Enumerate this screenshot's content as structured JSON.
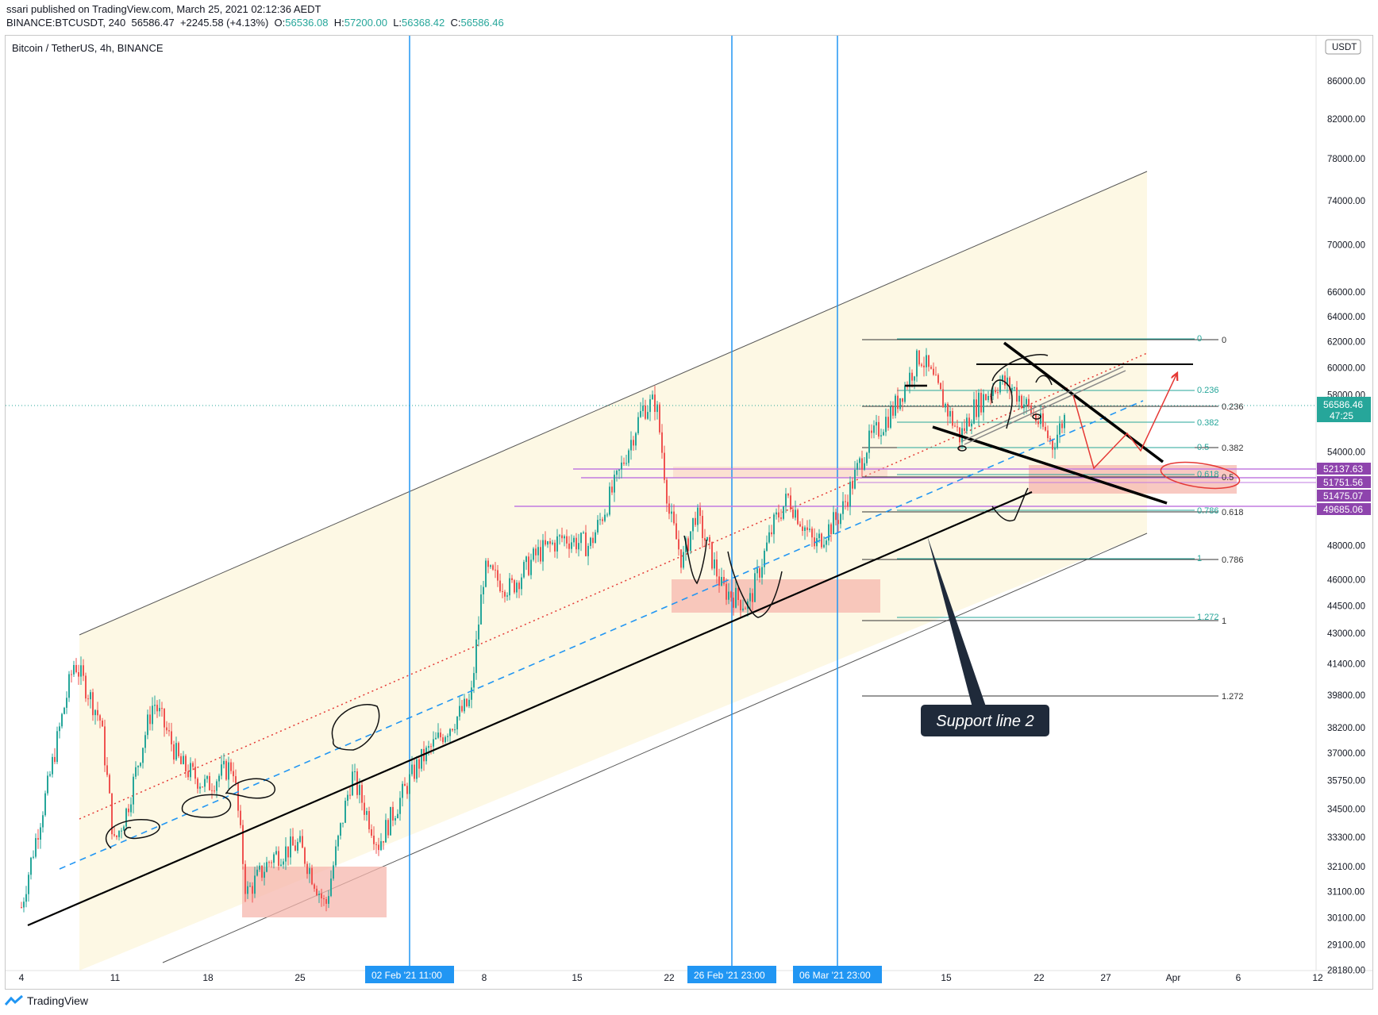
{
  "header": {
    "published": "ssari published on TradingView.com, March 25, 2021 02:12:36 AEDT",
    "symbol_line": "BINANCE:BTCUSDT, 240",
    "last": "56586.47",
    "change": "+2245.58 (+4.13%)",
    "o_label": "O:",
    "o": "56536.08",
    "h_label": "H:",
    "h": "57200.00",
    "l_label": "L:",
    "l": "56368.42",
    "c_label": "C:",
    "c": "56586.46"
  },
  "chart_title": "Bitcoin / TetherUS, 4h, BINANCE",
  "currency_badge": "USDT",
  "footer_brand": "TradingView",
  "annotation_label": "Support line 2",
  "colors": {
    "up": "#26a69a",
    "down": "#ef5350",
    "vline": "#2196f3",
    "purple": "#c27be0",
    "zone": "#f6b7ae",
    "channel_fill": "#fdf8e4"
  },
  "chart_data": {
    "type": "candlestick",
    "title": "Bitcoin / TetherUS, 4h, BINANCE",
    "y_scale": "log",
    "ylim": [
      27500,
      92000
    ],
    "y_ticks": [
      "86000.00",
      "82000.00",
      "78000.00",
      "74000.00",
      "70000.00",
      "66000.00",
      "64000.00",
      "62000.00",
      "60000.00",
      "58000.00",
      "54000.00",
      "48000.00",
      "46000.00",
      "44500.00",
      "43000.00",
      "41400.00",
      "39800.00",
      "38200.00",
      "37000.00",
      "35750.00",
      "34500.00",
      "33300.00",
      "32100.00",
      "31100.00",
      "30100.00",
      "29100.00",
      "28180.00"
    ],
    "x_ticks": [
      "4",
      "11",
      "18",
      "25",
      "8",
      "15",
      "22",
      "15",
      "22",
      "27",
      "Apr",
      "6",
      "12"
    ],
    "vline_labels": [
      "02 Feb '21   11:00",
      "26 Feb '21   23:00",
      "06 Mar '21   23:00"
    ],
    "current_price": "56586.46",
    "current_price_timer": "47:25",
    "price_level_tags": [
      "52137.63",
      "51751.56",
      "51475.07",
      "49685.06"
    ],
    "fib_retracement_1": {
      "levels": [
        "0",
        "0.236",
        "0.382",
        "0.5",
        "0.618",
        "0.786",
        "1",
        "1.272"
      ]
    },
    "fib_retracement_2": {
      "levels": [
        "0",
        "0.236",
        "0.382",
        "0.5",
        "0.618",
        "0.786",
        "1",
        "1.272"
      ]
    },
    "price_path": [
      {
        "date": "2021-01-04",
        "price": 30500
      },
      {
        "date": "2021-01-06",
        "price": 35500
      },
      {
        "date": "2021-01-08",
        "price": 41500
      },
      {
        "date": "2021-01-10",
        "price": 38500
      },
      {
        "date": "2021-01-11",
        "price": 33000
      },
      {
        "date": "2021-01-12",
        "price": 34500
      },
      {
        "date": "2021-01-14",
        "price": 39500
      },
      {
        "date": "2021-01-16",
        "price": 36500
      },
      {
        "date": "2021-01-18",
        "price": 35500
      },
      {
        "date": "2021-01-20",
        "price": 36500
      },
      {
        "date": "2021-01-21",
        "price": 31000
      },
      {
        "date": "2021-01-23",
        "price": 32500
      },
      {
        "date": "2021-01-25",
        "price": 33000
      },
      {
        "date": "2021-01-27",
        "price": 30500
      },
      {
        "date": "2021-01-29",
        "price": 36000
      },
      {
        "date": "2021-01-31",
        "price": 33000
      },
      {
        "date": "2021-02-03",
        "price": 36500
      },
      {
        "date": "2021-02-05",
        "price": 38000
      },
      {
        "date": "2021-02-07",
        "price": 39500
      },
      {
        "date": "2021-02-08",
        "price": 46500
      },
      {
        "date": "2021-02-10",
        "price": 45500
      },
      {
        "date": "2021-02-12",
        "price": 47500
      },
      {
        "date": "2021-02-14",
        "price": 48500
      },
      {
        "date": "2021-02-16",
        "price": 48000
      },
      {
        "date": "2021-02-18",
        "price": 52000
      },
      {
        "date": "2021-02-20",
        "price": 57000
      },
      {
        "date": "2021-02-21",
        "price": 57500
      },
      {
        "date": "2021-02-22",
        "price": 50000
      },
      {
        "date": "2021-02-23",
        "price": 47000
      },
      {
        "date": "2021-02-24",
        "price": 50000
      },
      {
        "date": "2021-02-26",
        "price": 45500
      },
      {
        "date": "2021-02-28",
        "price": 44500
      },
      {
        "date": "2021-03-02",
        "price": 49500
      },
      {
        "date": "2021-03-03",
        "price": 51000
      },
      {
        "date": "2021-03-05",
        "price": 48000
      },
      {
        "date": "2021-03-07",
        "price": 50000
      },
      {
        "date": "2021-03-09",
        "price": 54500
      },
      {
        "date": "2021-03-11",
        "price": 57000
      },
      {
        "date": "2021-03-13",
        "price": 61000
      },
      {
        "date": "2021-03-14",
        "price": 59000
      },
      {
        "date": "2021-03-16",
        "price": 55000
      },
      {
        "date": "2021-03-17",
        "price": 57000
      },
      {
        "date": "2021-03-19",
        "price": 59000
      },
      {
        "date": "2021-03-20",
        "price": 58500
      },
      {
        "date": "2021-03-22",
        "price": 56000
      },
      {
        "date": "2021-03-23",
        "price": 54500
      },
      {
        "date": "2021-03-24",
        "price": 56586
      }
    ]
  }
}
